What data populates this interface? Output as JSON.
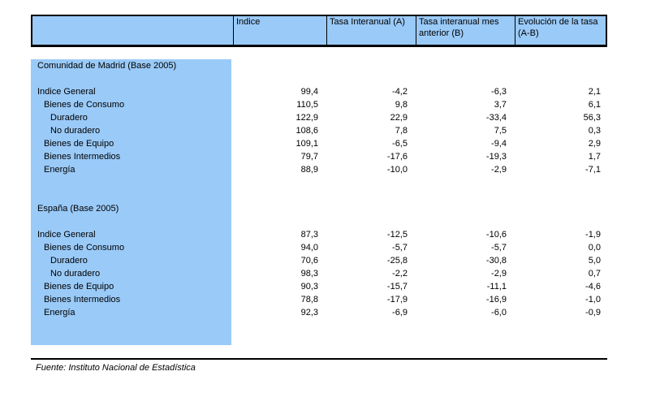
{
  "colors": {
    "header_fill": "#9ACAF8",
    "label_column_fill": "#9ACAF8",
    "border": "#000000",
    "text": "#000000"
  },
  "table": {
    "columns": [
      "",
      "Indice",
      "Tasa Interanual (A)",
      "Tasa interanual mes anterior (B)",
      "Evolución de la tasa (A-B)"
    ],
    "sections": [
      {
        "title": "Comunidad de Madrid (Base 2005)",
        "rows": [
          {
            "label": "Indice General",
            "indent": 0,
            "values": [
              "99,4",
              "-4,2",
              "-6,3",
              "2,1"
            ]
          },
          {
            "label": "Bienes de Consumo",
            "indent": 1,
            "values": [
              "110,5",
              "9,8",
              "3,7",
              "6,1"
            ]
          },
          {
            "label": "Duradero",
            "indent": 2,
            "values": [
              "122,9",
              "22,9",
              "-33,4",
              "56,3"
            ]
          },
          {
            "label": "No duradero",
            "indent": 2,
            "values": [
              "108,6",
              "7,8",
              "7,5",
              "0,3"
            ]
          },
          {
            "label": "Bienes de Equipo",
            "indent": 1,
            "values": [
              "109,1",
              "-6,5",
              "-9,4",
              "2,9"
            ]
          },
          {
            "label": "Bienes Intermedios",
            "indent": 1,
            "values": [
              "79,7",
              "-17,6",
              "-19,3",
              "1,7"
            ]
          },
          {
            "label": "Energía",
            "indent": 1,
            "values": [
              "88,9",
              "-10,0",
              "-2,9",
              "-7,1"
            ]
          }
        ]
      },
      {
        "title": "España (Base 2005)",
        "rows": [
          {
            "label": "Indice General",
            "indent": 0,
            "values": [
              "87,3",
              "-12,5",
              "-10,6",
              "-1,9"
            ]
          },
          {
            "label": "Bienes de Consumo",
            "indent": 1,
            "values": [
              "94,0",
              "-5,7",
              "-5,7",
              "0,0"
            ]
          },
          {
            "label": "Duradero",
            "indent": 2,
            "values": [
              "70,6",
              "-25,8",
              "-30,8",
              "5,0"
            ]
          },
          {
            "label": "No duradero",
            "indent": 2,
            "values": [
              "98,3",
              "-2,2",
              "-2,9",
              "0,7"
            ]
          },
          {
            "label": "Bienes de Equipo",
            "indent": 1,
            "values": [
              "90,3",
              "-15,7",
              "-11,1",
              "-4,6"
            ]
          },
          {
            "label": "Bienes Intermedios",
            "indent": 1,
            "values": [
              "78,8",
              "-17,9",
              "-16,9",
              "-1,0"
            ]
          },
          {
            "label": "Energía",
            "indent": 1,
            "values": [
              "92,3",
              "-6,9",
              "-6,0",
              "-0,9"
            ]
          }
        ]
      }
    ]
  },
  "footer": {
    "source": "Fuente: Instituto Nacional de Estadística"
  }
}
